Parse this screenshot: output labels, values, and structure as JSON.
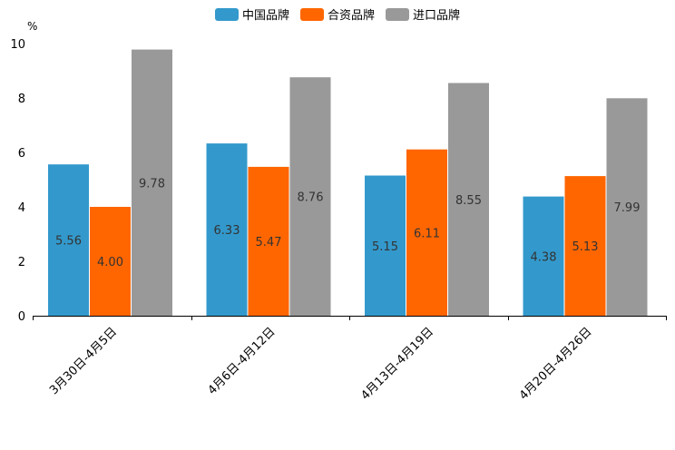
{
  "chart_data": {
    "type": "bar",
    "title": "",
    "ylabel": "%",
    "xlabel": "",
    "ylim": [
      0,
      10
    ],
    "yticks": [
      0,
      2,
      4,
      6,
      8,
      10
    ],
    "categories": [
      "3月30日-4月5日",
      "4月6日-4月12日",
      "4月13日-4月19日",
      "4月20日-4月26日"
    ],
    "series": [
      {
        "name": "中国品牌",
        "color": "#3399CC",
        "values": [
          5.56,
          6.33,
          5.15,
          4.38
        ],
        "labels": [
          "5.56",
          "6.33",
          "5.15",
          "4.38"
        ]
      },
      {
        "name": "合资品牌",
        "color": "#FF6600",
        "values": [
          4.0,
          5.47,
          6.11,
          5.13
        ],
        "labels": [
          "4.00",
          "5.47",
          "6.11",
          "5.13"
        ]
      },
      {
        "name": "进口品牌",
        "color": "#999999",
        "values": [
          9.78,
          8.76,
          8.55,
          7.99
        ],
        "labels": [
          "9.78",
          "8.76",
          "8.55",
          "7.99"
        ]
      }
    ],
    "legend_position": "top-center",
    "grid": false
  }
}
